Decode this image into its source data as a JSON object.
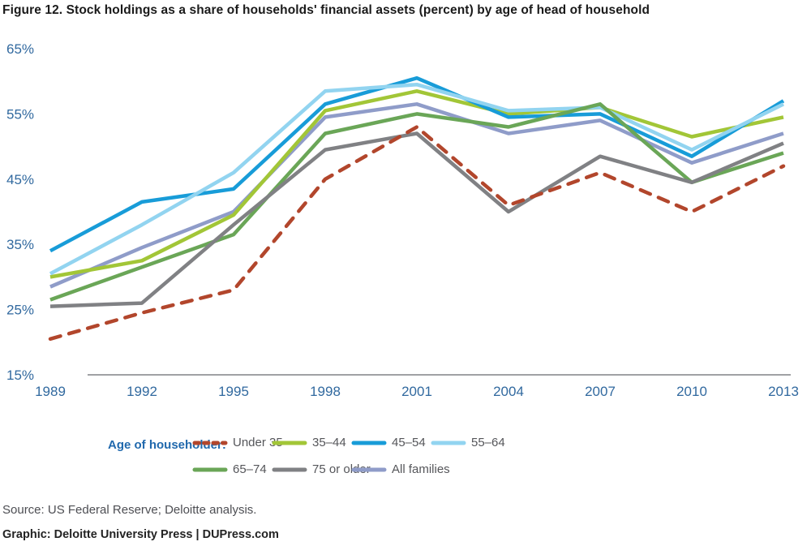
{
  "title": "Figure 12. Stock holdings as a share of households' financial assets (percent) by age of head of household",
  "chart_data": {
    "type": "line",
    "title": "Figure 12. Stock holdings as a share of households' financial assets (percent) by age of head of household",
    "x": [
      1989,
      1992,
      1995,
      1998,
      2001,
      2004,
      2007,
      2010,
      2013
    ],
    "x_tick_labels": [
      "1989",
      "1992",
      "1995",
      "1998",
      "2001",
      "2004",
      "2007",
      "2010",
      "2013"
    ],
    "y_ticks": [
      65,
      55,
      45,
      35,
      25,
      15
    ],
    "y_tick_labels": [
      "65%",
      "55%",
      "45%",
      "35%",
      "25%",
      "15%"
    ],
    "ylim": [
      15,
      65
    ],
    "y_unit": "percent",
    "grid": false,
    "legend_position": "bottom",
    "legend_title": "Age of householder:",
    "series": [
      {
        "name": "Under 35",
        "color": "#b2462c",
        "dashed": true,
        "values": [
          20.5,
          24.5,
          28,
          45,
          53,
          41,
          46,
          40,
          47
        ]
      },
      {
        "name": "35–44",
        "color": "#a2c637",
        "dashed": false,
        "values": [
          30,
          32.5,
          39.5,
          55.5,
          58.5,
          55,
          56,
          51.5,
          54.5
        ]
      },
      {
        "name": "45–54",
        "color": "#189cd8",
        "dashed": false,
        "values": [
          34,
          41.5,
          43.5,
          56.5,
          60.5,
          54.5,
          55,
          48.5,
          57
        ]
      },
      {
        "name": "55–64",
        "color": "#92d4f0",
        "dashed": false,
        "values": [
          30.5,
          38,
          46,
          58.5,
          59.5,
          55.5,
          56,
          49.5,
          56.5
        ]
      },
      {
        "name": "65–74",
        "color": "#6aa657",
        "dashed": false,
        "values": [
          26.5,
          31.5,
          36.5,
          52,
          55,
          53,
          56.5,
          44.5,
          49
        ]
      },
      {
        "name": "75 or older",
        "color": "#808184",
        "dashed": false,
        "values": [
          25.5,
          26,
          38,
          49.5,
          52,
          40,
          48.5,
          44.5,
          50.5
        ]
      },
      {
        "name": "All families",
        "color": "#8f9cc9",
        "dashed": false,
        "values": [
          28.5,
          34.5,
          40,
          54.5,
          56.5,
          52,
          54,
          47.5,
          52
        ]
      }
    ],
    "legend_rows": [
      [
        0,
        1,
        2,
        3
      ],
      [
        4,
        5,
        6
      ]
    ]
  },
  "footer": {
    "source": "Source: US Federal Reserve; Deloitte analysis.",
    "graphic": "Graphic: Deloitte University Press  |  DUPress.com"
  },
  "colors": {
    "axis_labels": "#31699f",
    "axis_line": "#808285",
    "legend_title": "#2169ad",
    "legend_text": "#55565a",
    "title_text": "#1a1a1a"
  }
}
